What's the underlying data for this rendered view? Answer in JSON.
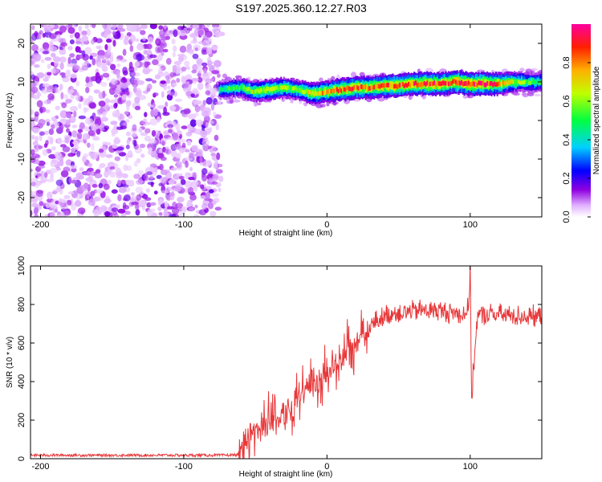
{
  "title": "S197.2025.360.12.27.R03",
  "chart_data": [
    {
      "type": "heatmap",
      "xlabel": "Height of straight line (km)",
      "ylabel": "Frequency (Hz)",
      "xlim": [
        -207,
        150
      ],
      "ylim": [
        -25,
        25
      ],
      "xticks": [
        -200,
        -100,
        0,
        100
      ],
      "yticks": [
        -20,
        -10,
        0,
        10,
        20
      ],
      "noise_region_x": [
        -207,
        -75
      ],
      "signal_band": {
        "x": [
          -75,
          -60,
          -50,
          -40,
          -30,
          -20,
          -10,
          0,
          10,
          20,
          30,
          40,
          50,
          60,
          70,
          80,
          90,
          100,
          110,
          120,
          130,
          140,
          150
        ],
        "freq_hz": [
          8,
          8.5,
          7.5,
          8,
          8.5,
          8,
          7,
          7.5,
          8,
          8.5,
          8.5,
          9,
          9,
          9.5,
          9.5,
          9.5,
          10,
          9.5,
          9.5,
          9.5,
          10,
          10,
          10
        ],
        "amplitude": [
          0.5,
          0.6,
          0.7,
          0.75,
          0.7,
          0.65,
          0.8,
          0.85,
          0.9,
          0.95,
          0.9,
          0.92,
          0.95,
          0.95,
          0.97,
          0.95,
          0.97,
          1.0,
          1.0,
          0.9,
          0.7,
          0.6,
          0.55
        ]
      },
      "colorbar": {
        "label": "Normalized spectral amplitude",
        "range": [
          0,
          1
        ],
        "ticks": [
          "0.0",
          "0.2",
          "0.4",
          "0.6",
          "0.8"
        ],
        "tick_values": [
          0,
          0.2,
          0.4,
          0.6,
          0.8
        ]
      }
    },
    {
      "type": "line",
      "xlabel": "Height of straight line (km)",
      "ylabel": "SNR (10 * v/v)",
      "xlim": [
        -207,
        150
      ],
      "ylim": [
        0,
        1000
      ],
      "xticks": [
        -200,
        -100,
        0,
        100
      ],
      "yticks": [
        0,
        200,
        400,
        600,
        800,
        1000
      ],
      "color": "#e8383a",
      "series": [
        {
          "name": "SNR",
          "x": [
            -207,
            -150,
            -100,
            -70,
            -62,
            -55,
            -45,
            -35,
            -25,
            -15,
            -5,
            5,
            15,
            25,
            35,
            45,
            55,
            65,
            75,
            85,
            95,
            99,
            100,
            101,
            105,
            115,
            125,
            135,
            150
          ],
          "y": [
            18,
            18,
            18,
            18,
            20,
            120,
            170,
            220,
            280,
            330,
            400,
            470,
            560,
            640,
            720,
            755,
            760,
            770,
            770,
            760,
            750,
            780,
            1000,
            320,
            740,
            750,
            745,
            740,
            735
          ]
        }
      ]
    }
  ]
}
